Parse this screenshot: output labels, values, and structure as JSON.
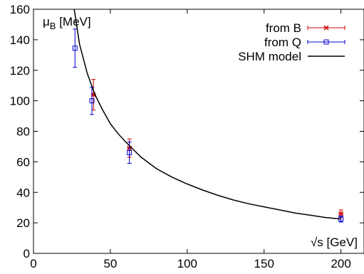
{
  "chart_data": {
    "type": "scatter",
    "title": "",
    "xlabel": "√s [GeV]",
    "ylabel_main": "μ",
    "ylabel_sub": "B",
    "ylabel_unit": " [MeV]",
    "xlim": [
      0,
      215
    ],
    "ylim": [
      0,
      160
    ],
    "xticks": [
      0,
      50,
      100,
      150,
      200
    ],
    "yticks": [
      0,
      20,
      40,
      60,
      80,
      100,
      120,
      140,
      160
    ],
    "grid": false,
    "legend_position": "top-right",
    "series": [
      {
        "name": "from B",
        "color": "#d00000",
        "marker": "x",
        "points": [
          {
            "x": 39,
            "y": 104,
            "err": 10
          },
          {
            "x": 62.4,
            "y": 69,
            "err": 6
          },
          {
            "x": 200,
            "y": 26,
            "err": 2.5
          }
        ]
      },
      {
        "name": "from Q",
        "color": "#0000d0",
        "marker": "square",
        "points": [
          {
            "x": 27,
            "y": 134.5,
            "err": 12.5
          },
          {
            "x": 38,
            "y": 100,
            "err": 9
          },
          {
            "x": 62.4,
            "y": 66,
            "err": 7
          },
          {
            "x": 200,
            "y": 22.5,
            "err": 2
          }
        ]
      },
      {
        "name": "SHM model",
        "color": "#000000",
        "type": "line",
        "points": [
          {
            "x": 26.5,
            "y": 160
          },
          {
            "x": 30,
            "y": 137
          },
          {
            "x": 35,
            "y": 118
          },
          {
            "x": 40,
            "y": 104
          },
          {
            "x": 45,
            "y": 94
          },
          {
            "x": 50,
            "y": 85
          },
          {
            "x": 55,
            "y": 78.5
          },
          {
            "x": 60,
            "y": 73
          },
          {
            "x": 70,
            "y": 63
          },
          {
            "x": 80,
            "y": 55.5
          },
          {
            "x": 90,
            "y": 50
          },
          {
            "x": 100,
            "y": 45.5
          },
          {
            "x": 110,
            "y": 41.5
          },
          {
            "x": 120,
            "y": 38
          },
          {
            "x": 130,
            "y": 35
          },
          {
            "x": 140,
            "y": 32.5
          },
          {
            "x": 150,
            "y": 30.5
          },
          {
            "x": 160,
            "y": 28.5
          },
          {
            "x": 170,
            "y": 26.5
          },
          {
            "x": 180,
            "y": 25
          },
          {
            "x": 190,
            "y": 23.5
          },
          {
            "x": 200,
            "y": 22.5
          }
        ]
      }
    ]
  }
}
